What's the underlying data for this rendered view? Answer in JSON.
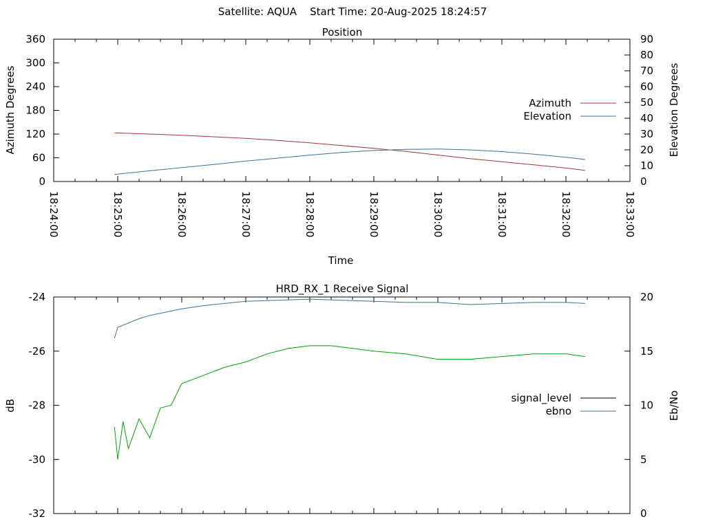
{
  "page_title": "Satellite: AQUA    Start Time: 20-Aug-2025 18:24:57",
  "chart_data": [
    {
      "type": "line",
      "title": "Position",
      "xlabel": "Time",
      "ylabel_left": "Azimuth Degrees",
      "ylabel_right": "Elevation Degrees",
      "xlim": [
        "18:24:00",
        "18:33:00"
      ],
      "x_ticks": [
        "18:24:00",
        "18:25:00",
        "18:26:00",
        "18:27:00",
        "18:28:00",
        "18:29:00",
        "18:30:00",
        "18:31:00",
        "18:32:00",
        "18:33:00"
      ],
      "ylim_left": [
        0,
        360
      ],
      "y_ticks_left": [
        "0",
        "60",
        "120",
        "180",
        "240",
        "300",
        "360"
      ],
      "ylim_right": [
        0,
        90
      ],
      "y_ticks_right": [
        "0",
        "10",
        "20",
        "30",
        "40",
        "50",
        "60",
        "70",
        "80",
        "90"
      ],
      "grid": false,
      "legend_position": "right",
      "series": [
        {
          "name": "Azimuth",
          "axis": "left",
          "color": "#a83232",
          "x": [
            "18:24:57",
            "18:25:30",
            "18:26:00",
            "18:26:30",
            "18:27:00",
            "18:27:30",
            "18:28:00",
            "18:28:30",
            "18:29:00",
            "18:29:30",
            "18:30:00",
            "18:30:30",
            "18:31:00",
            "18:31:30",
            "18:32:00",
            "18:32:18"
          ],
          "values": [
            123,
            120,
            117,
            113,
            109,
            104,
            98,
            91,
            84,
            76,
            67,
            58,
            50,
            42,
            34,
            28
          ]
        },
        {
          "name": "Elevation",
          "axis": "right",
          "color": "#3c6e96",
          "x": [
            "18:24:57",
            "18:25:30",
            "18:26:00",
            "18:26:30",
            "18:27:00",
            "18:27:30",
            "18:28:00",
            "18:28:30",
            "18:29:00",
            "18:29:30",
            "18:30:00",
            "18:30:30",
            "18:31:00",
            "18:31:30",
            "18:32:00",
            "18:32:18"
          ],
          "values": [
            4.5,
            6.8,
            8.8,
            10.8,
            12.9,
            14.8,
            16.7,
            18.4,
            19.6,
            20.3,
            20.5,
            20.0,
            18.9,
            17.3,
            15.3,
            13.9
          ]
        }
      ]
    },
    {
      "type": "line",
      "title": "HRD_RX_1 Receive Signal",
      "ylabel_left": "dB",
      "ylabel_right": "Eb/No",
      "xlim": [
        "18:24:00",
        "18:33:00"
      ],
      "ylim_left": [
        -32,
        -24
      ],
      "y_ticks_left": [
        "-32",
        "-30",
        "-28",
        "-26",
        "-24"
      ],
      "ylim_right": [
        0,
        20
      ],
      "y_ticks_right": [
        "0",
        "5",
        "10",
        "15",
        "20"
      ],
      "grid": false,
      "legend_position": "right",
      "series": [
        {
          "name": "signal_level",
          "axis": "left",
          "color": "#000000",
          "x": [],
          "values": []
        },
        {
          "name": "ebno",
          "axis": "right",
          "color": "#3c6e96",
          "x": [
            "18:24:57",
            "18:25:00",
            "18:25:10",
            "18:25:20",
            "18:25:30",
            "18:25:40",
            "18:26:00",
            "18:26:20",
            "18:26:40",
            "18:27:00",
            "18:27:30",
            "18:28:00",
            "18:28:30",
            "18:29:00",
            "18:29:30",
            "18:30:00",
            "18:30:30",
            "18:31:00",
            "18:31:30",
            "18:32:00",
            "18:32:18"
          ],
          "values": [
            16.2,
            17.2,
            17.6,
            18.0,
            18.3,
            18.5,
            18.9,
            19.2,
            19.4,
            19.6,
            19.7,
            19.8,
            19.7,
            19.6,
            19.5,
            19.5,
            19.3,
            19.4,
            19.5,
            19.5,
            19.4
          ]
        },
        {
          "name": "",
          "axis": "left",
          "color": "#00a000",
          "x": [
            "18:24:57",
            "18:25:00",
            "18:25:05",
            "18:25:10",
            "18:25:20",
            "18:25:30",
            "18:25:40",
            "18:25:50",
            "18:26:00",
            "18:26:20",
            "18:26:40",
            "18:27:00",
            "18:27:20",
            "18:27:40",
            "18:28:00",
            "18:28:20",
            "18:28:40",
            "18:29:00",
            "18:29:30",
            "18:30:00",
            "18:30:30",
            "18:31:00",
            "18:31:30",
            "18:32:00",
            "18:32:18"
          ],
          "values": [
            -28.8,
            -30.0,
            -28.6,
            -29.6,
            -28.5,
            -29.2,
            -28.1,
            -28.0,
            -27.2,
            -26.9,
            -26.6,
            -26.4,
            -26.1,
            -25.9,
            -25.8,
            -25.8,
            -25.9,
            -26.0,
            -26.1,
            -26.3,
            -26.3,
            -26.2,
            -26.1,
            -26.1,
            -26.2
          ]
        }
      ]
    }
  ]
}
